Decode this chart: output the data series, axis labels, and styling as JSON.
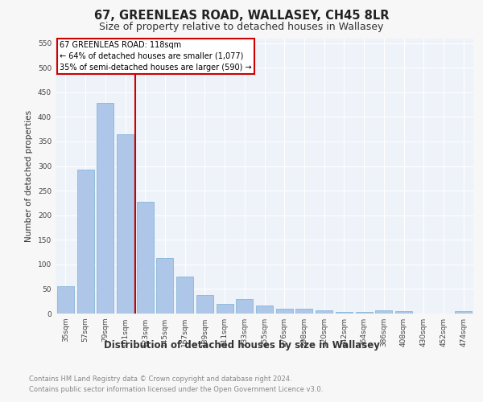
{
  "title": "67, GREENLEAS ROAD, WALLASEY, CH45 8LR",
  "subtitle": "Size of property relative to detached houses in Wallasey",
  "xlabel": "Distribution of detached houses by size in Wallasey",
  "ylabel": "Number of detached properties",
  "categories": [
    "35sqm",
    "57sqm",
    "79sqm",
    "101sqm",
    "123sqm",
    "145sqm",
    "167sqm",
    "189sqm",
    "211sqm",
    "233sqm",
    "255sqm",
    "276sqm",
    "298sqm",
    "320sqm",
    "342sqm",
    "364sqm",
    "386sqm",
    "408sqm",
    "430sqm",
    "452sqm",
    "474sqm"
  ],
  "values": [
    55,
    293,
    428,
    365,
    228,
    113,
    75,
    38,
    20,
    29,
    17,
    10,
    9,
    7,
    3,
    3,
    6,
    5,
    0,
    0,
    5
  ],
  "bar_color": "#aec6e8",
  "bar_edge_color": "#7bafd4",
  "annotation_line_label": "67 GREENLEAS ROAD: 118sqm",
  "annotation_text1": "← 64% of detached houses are smaller (1,077)",
  "annotation_text2": "35% of semi-detached houses are larger (590) →",
  "annotation_box_color": "#ffffff",
  "annotation_box_edge_color": "#cc0000",
  "vline_color": "#cc0000",
  "vline_x": 3.5,
  "ylim": [
    0,
    560
  ],
  "yticks": [
    0,
    50,
    100,
    150,
    200,
    250,
    300,
    350,
    400,
    450,
    500,
    550
  ],
  "background_color": "#f7f7f7",
  "plot_bg_color": "#eef2f9",
  "grid_color": "#ffffff",
  "footer_text": "Contains HM Land Registry data © Crown copyright and database right 2024.\nContains public sector information licensed under the Open Government Licence v3.0.",
  "title_fontsize": 10.5,
  "subtitle_fontsize": 9,
  "xlabel_fontsize": 8.5,
  "ylabel_fontsize": 7.5,
  "tick_fontsize": 6.5,
  "annotation_fontsize": 7,
  "footer_fontsize": 6
}
